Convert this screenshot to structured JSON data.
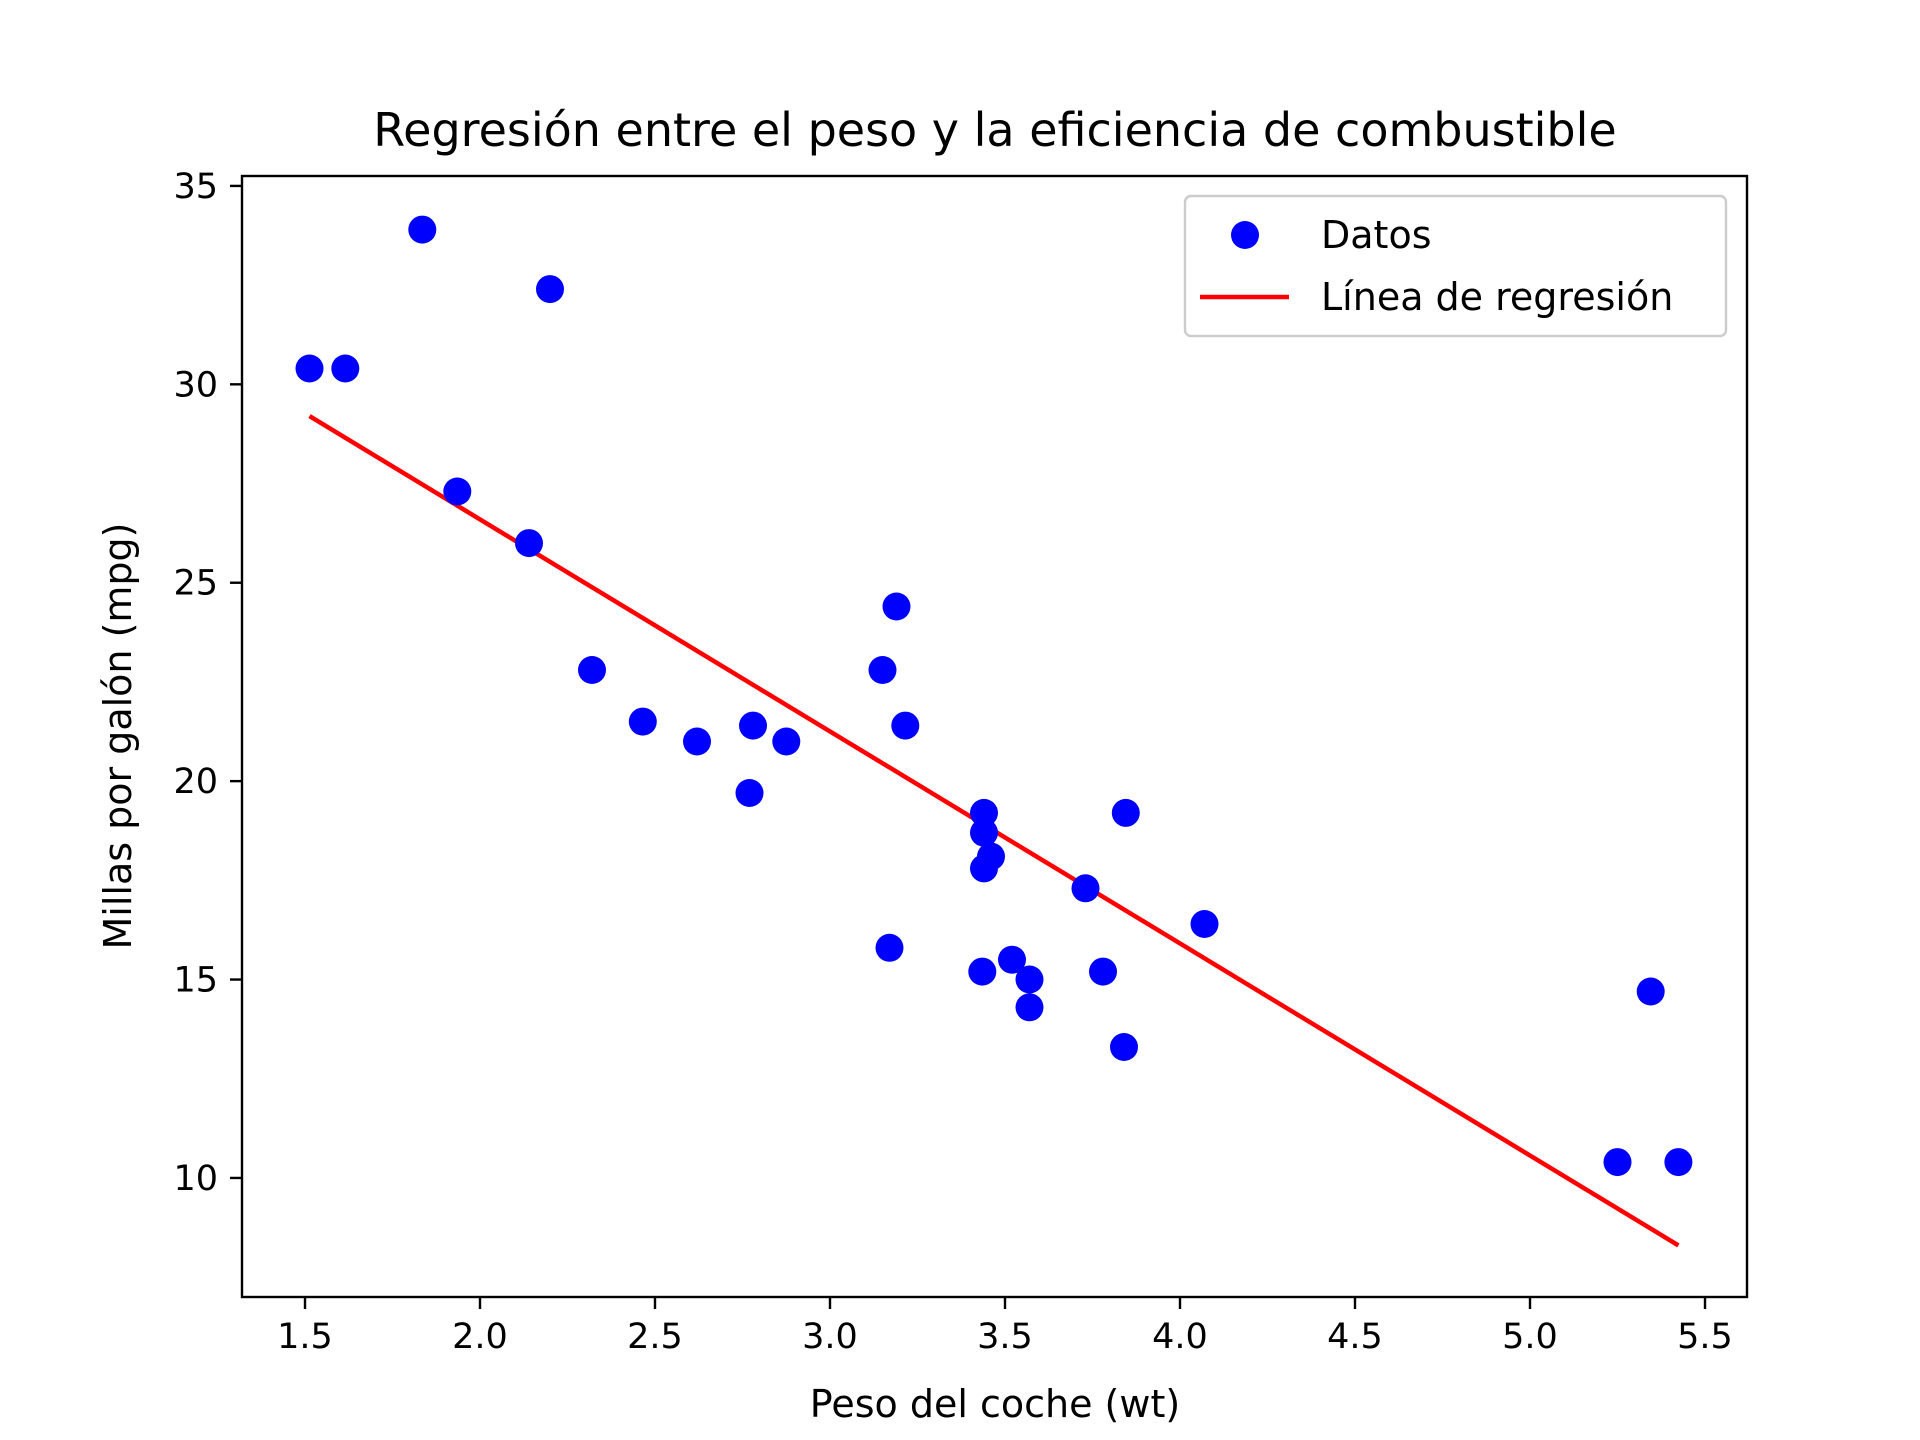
{
  "chart_data": {
    "type": "scatter",
    "title": "Regresión entre el peso y la eficiencia de combustible",
    "xlabel": "Peso del coche (wt)",
    "ylabel": "Millas por galón (mpg)",
    "xlim": [
      1.32,
      5.62
    ],
    "ylim": [
      7.0,
      35.25
    ],
    "xticks": [
      1.5,
      2.0,
      2.5,
      3.0,
      3.5,
      4.0,
      4.5,
      5.0,
      5.5
    ],
    "xtick_labels": [
      "1.5",
      "2.0",
      "2.5",
      "3.0",
      "3.5",
      "4.0",
      "4.5",
      "5.0",
      "5.5"
    ],
    "yticks": [
      10,
      15,
      20,
      25,
      30,
      35
    ],
    "ytick_labels": [
      "10",
      "15",
      "20",
      "25",
      "30",
      "35"
    ],
    "grid": false,
    "legend_position": "top-right",
    "series": [
      {
        "name": "Datos",
        "kind": "scatter",
        "color": "#0000ff",
        "points": [
          [
            2.62,
            21.0
          ],
          [
            2.875,
            21.0
          ],
          [
            2.32,
            22.8
          ],
          [
            3.215,
            21.4
          ],
          [
            3.44,
            18.7
          ],
          [
            3.46,
            18.1
          ],
          [
            3.57,
            14.3
          ],
          [
            3.19,
            24.4
          ],
          [
            3.15,
            22.8
          ],
          [
            3.44,
            19.2
          ],
          [
            3.44,
            17.8
          ],
          [
            4.07,
            16.4
          ],
          [
            3.73,
            17.3
          ],
          [
            3.78,
            15.2
          ],
          [
            5.25,
            10.4
          ],
          [
            5.424,
            10.4
          ],
          [
            5.345,
            14.7
          ],
          [
            2.2,
            32.4
          ],
          [
            1.615,
            30.4
          ],
          [
            1.835,
            33.9
          ],
          [
            2.465,
            21.5
          ],
          [
            3.52,
            15.5
          ],
          [
            3.435,
            15.2
          ],
          [
            3.84,
            13.3
          ],
          [
            3.845,
            19.2
          ],
          [
            1.935,
            27.3
          ],
          [
            2.14,
            26.0
          ],
          [
            1.513,
            30.4
          ],
          [
            3.17,
            15.8
          ],
          [
            2.77,
            19.7
          ],
          [
            3.57,
            15.0
          ],
          [
            2.78,
            21.4
          ]
        ]
      },
      {
        "name": "Línea de regresión",
        "kind": "line",
        "color": "#ff0000",
        "points": [
          [
            1.513,
            29.2
          ],
          [
            5.424,
            8.3
          ]
        ]
      }
    ]
  }
}
